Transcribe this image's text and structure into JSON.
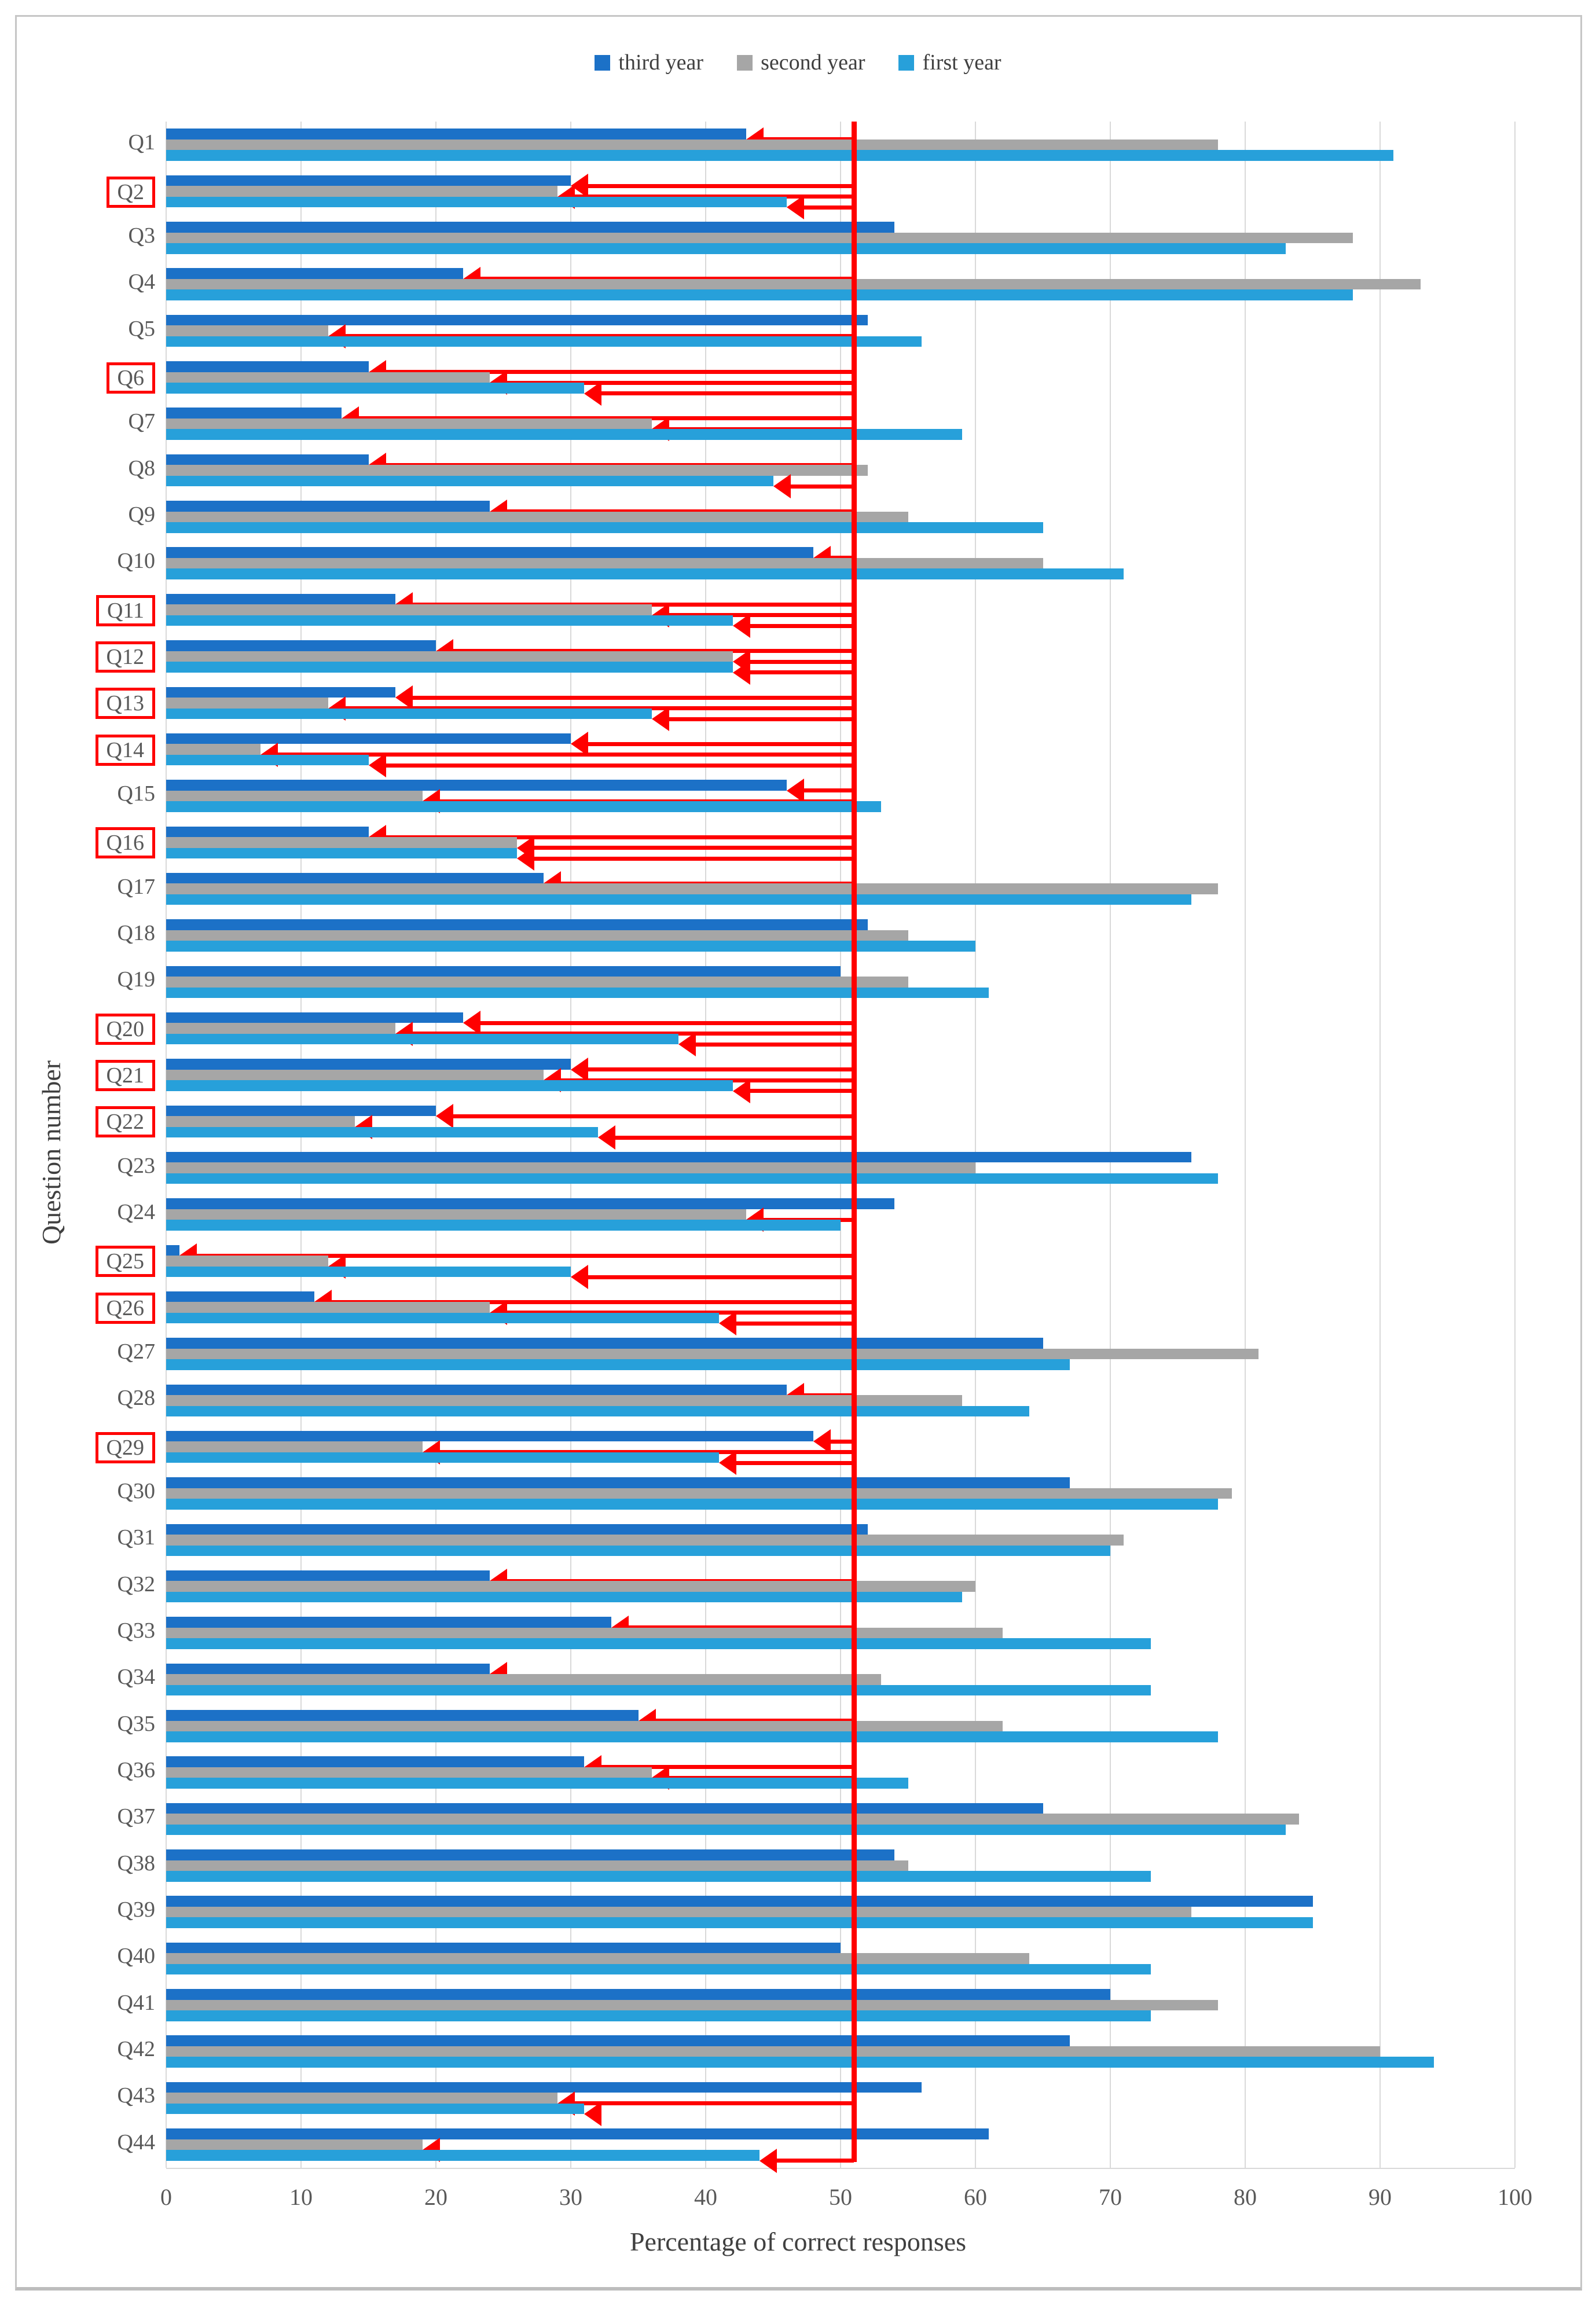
{
  "axes": {
    "x_title": "Percentage of correct responses",
    "y_title": "Question number"
  },
  "chart_data": {
    "type": "bar",
    "orientation": "horizontal",
    "title": "",
    "xlabel": "Percentage of correct responses",
    "ylabel": "Question number",
    "xlim": [
      0,
      100
    ],
    "xticks": [
      0,
      10,
      20,
      30,
      40,
      50,
      60,
      70,
      80,
      90,
      100
    ],
    "grid": true,
    "legend_position": "top",
    "categories": [
      "Q1",
      "Q2",
      "Q3",
      "Q4",
      "Q5",
      "Q6",
      "Q7",
      "Q8",
      "Q9",
      "Q10",
      "Q11",
      "Q12",
      "Q13",
      "Q14",
      "Q15",
      "Q16",
      "Q17",
      "Q18",
      "Q19",
      "Q20",
      "Q21",
      "Q22",
      "Q23",
      "Q24",
      "Q25",
      "Q26",
      "Q27",
      "Q28",
      "Q29",
      "Q30",
      "Q31",
      "Q32",
      "Q33",
      "Q34",
      "Q35",
      "Q36",
      "Q37",
      "Q38",
      "Q39",
      "Q40",
      "Q41",
      "Q42",
      "Q43",
      "Q44"
    ],
    "series": [
      {
        "name": "third year",
        "color": "#1c71c7",
        "values": [
          43,
          30,
          54,
          22,
          52,
          15,
          13,
          15,
          24,
          48,
          17,
          20,
          17,
          30,
          46,
          15,
          28,
          52,
          50,
          22,
          30,
          20,
          76,
          54,
          1,
          11,
          65,
          46,
          48,
          67,
          52,
          24,
          33,
          24,
          35,
          31,
          65,
          54,
          85,
          50,
          70,
          67,
          56,
          61
        ]
      },
      {
        "name": "second year",
        "color": "#a6a6a6",
        "values": [
          78,
          29,
          88,
          93,
          12,
          24,
          36,
          52,
          55,
          65,
          36,
          42,
          12,
          7,
          19,
          26,
          78,
          55,
          55,
          17,
          28,
          14,
          60,
          43,
          12,
          24,
          81,
          59,
          19,
          79,
          71,
          60,
          62,
          53,
          62,
          36,
          84,
          55,
          76,
          64,
          78,
          90,
          29,
          19
        ]
      },
      {
        "name": "first year",
        "color": "#27a0da",
        "values": [
          91,
          46,
          83,
          88,
          56,
          31,
          59,
          45,
          65,
          71,
          42,
          42,
          36,
          15,
          53,
          26,
          76,
          60,
          61,
          38,
          42,
          32,
          78,
          50,
          30,
          41,
          67,
          64,
          41,
          78,
          70,
          59,
          73,
          73,
          78,
          55,
          83,
          73,
          85,
          73,
          73,
          94,
          31,
          44
        ]
      }
    ],
    "reference_line": {
      "x": 51,
      "color": "#ff0000"
    },
    "arrow_threshold": 50,
    "arrow_color": "#ff0000",
    "boxed_categories": [
      "Q2",
      "Q6",
      "Q11",
      "Q12",
      "Q13",
      "Q14",
      "Q16",
      "Q20",
      "Q21",
      "Q22",
      "Q25",
      "Q26",
      "Q29"
    ],
    "headonly_arrows": [
      [
        "Q22",
        1
      ],
      [
        "Q25",
        1
      ],
      [
        "Q34",
        0
      ],
      [
        "Q43",
        2
      ],
      [
        "Q44",
        1
      ]
    ]
  },
  "colors": {
    "grid": "#d9d9d9",
    "tick_label": "#595959",
    "axis_title": "#404040",
    "frame_border": "#c6c6c6"
  }
}
